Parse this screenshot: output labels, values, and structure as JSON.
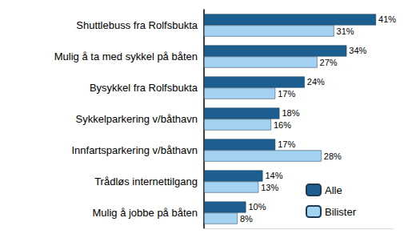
{
  "chart_data": {
    "type": "bar",
    "orientation": "horizontal",
    "categories": [
      "Shuttlebuss fra Rolfsbukta",
      "Mulig å ta med sykkel på båten",
      "Bysykkel fra Rolfsbukta",
      "Sykkelparkering v/båthavn",
      "Innfartsparkering v/båthavn",
      "Trådløs internettilgang",
      "Mulig å jobbe på båten"
    ],
    "series": [
      {
        "name": "Alle",
        "color": "#1b5e8f",
        "values": [
          41,
          34,
          24,
          18,
          17,
          14,
          10
        ],
        "value_labels": [
          "41%",
          "34%",
          "24%",
          "18%",
          "17%",
          "14%",
          "10%"
        ]
      },
      {
        "name": "Bilister",
        "color": "#a3d2f2",
        "values": [
          31,
          27,
          17,
          16,
          28,
          13,
          8
        ],
        "value_labels": [
          "31%",
          "27%",
          "17%",
          "16%",
          "28%",
          "13%",
          "8%"
        ]
      }
    ],
    "xlim": [
      0,
      45
    ],
    "grid": false,
    "legend": "lower right",
    "data_labels": true,
    "tick_labels": "y"
  }
}
